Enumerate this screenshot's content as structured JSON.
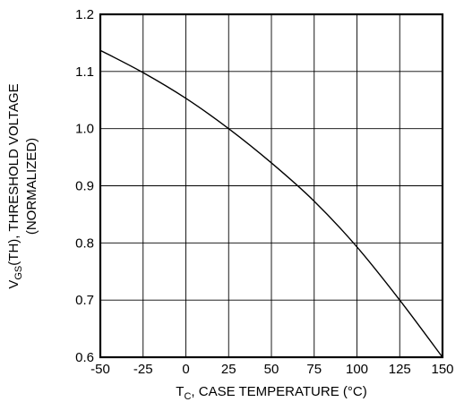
{
  "chart_data": {
    "type": "line",
    "title": "",
    "xlabel": {
      "main": "T",
      "sub": "C",
      "rest": ", CASE TEMPERATURE (°C)"
    },
    "ylabel": {
      "line1_main": "V",
      "line1_sub": "GS",
      "line1_rest": "(TH), THRESHOLD VOLTAGE",
      "line2": "(NORMALIZED)"
    },
    "xlim": [
      -50,
      150
    ],
    "ylim": [
      0.6,
      1.2
    ],
    "x_ticks": [
      -50,
      -25,
      0,
      25,
      50,
      75,
      100,
      125,
      150
    ],
    "x_tick_labels": [
      "-50",
      "-25",
      "0",
      "25",
      "50",
      "75",
      "100",
      "125",
      "150"
    ],
    "y_ticks": [
      0.6,
      0.7,
      0.8,
      0.9,
      1.0,
      1.1,
      1.2
    ],
    "y_tick_labels": [
      "0.6",
      "0.7",
      "0.8",
      "0.9",
      "1.0",
      "1.1",
      "1.2"
    ],
    "grid": true,
    "legend": "none",
    "series": [
      {
        "x": [
          -50,
          -25,
          0,
          25,
          50,
          75,
          100,
          125,
          150
        ],
        "y": [
          1.137,
          1.098,
          1.053,
          1.0,
          0.94,
          0.873,
          0.793,
          0.7,
          0.6
        ]
      }
    ],
    "colors": {
      "line": "#000000",
      "grid": "#000000",
      "frame": "#000000"
    }
  }
}
